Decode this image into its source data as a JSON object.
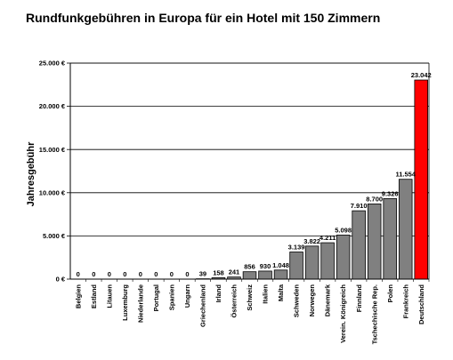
{
  "chart_data": {
    "type": "bar",
    "title": "Rundfunkgebühren in Europa für ein Hotel mit 150 Zimmern",
    "ylabel": "Jahresgebühr",
    "xlabel": "",
    "ylim": [
      0,
      25000
    ],
    "yticks": [
      0,
      5000,
      10000,
      15000,
      20000,
      25000
    ],
    "ytick_labels": [
      "0 €",
      "5.000 €",
      "10.000 €",
      "15.000 €",
      "20.000 €",
      "25.000 €"
    ],
    "grid": true,
    "categories": [
      "Belgien",
      "Estland",
      "Litauen",
      "Luxemburg",
      "Niederlande",
      "Portugal",
      "Spanien",
      "Ungarn",
      "Griechenland",
      "Irland",
      "Österreich",
      "Schweiz",
      "Italien",
      "Malta",
      "Schweden",
      "Norwegen",
      "Dänemark",
      "Verein. Königreich",
      "Finnland",
      "Tschechische Rep.",
      "Polen",
      "Frankreich",
      "Deutschland"
    ],
    "values": [
      0,
      0,
      0,
      0,
      0,
      0,
      0,
      0,
      39,
      158,
      241,
      856,
      930,
      1048,
      3139,
      3822,
      4211,
      5098,
      7910,
      8700,
      9326,
      11554,
      23042
    ],
    "value_labels": [
      "0",
      "0",
      "0",
      "0",
      "0",
      "0",
      "0",
      "0",
      "39",
      "158",
      "241",
      "856",
      "930",
      "1.048",
      "3.139",
      "3.822",
      "4.211",
      "5.098",
      "7.910",
      "8.700",
      "9.326",
      "11.554",
      "23.042"
    ],
    "colors": {
      "bar": "#808080",
      "highlight": "#ff0000",
      "highlight_category": "Deutschland",
      "bar_stroke": "#000000",
      "grid": "#000000"
    }
  }
}
